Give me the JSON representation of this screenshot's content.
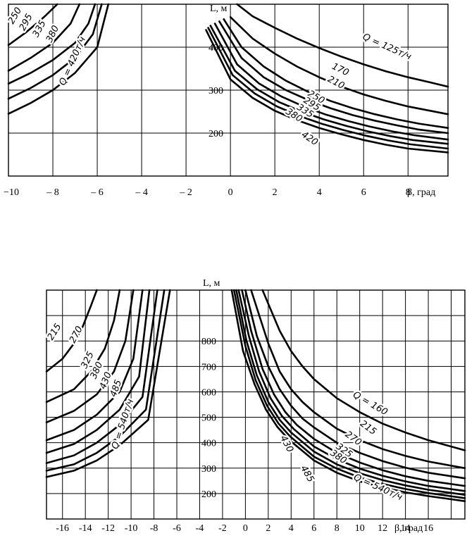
{
  "chart_data": [
    {
      "type": "line",
      "title": "",
      "xlabel": "β, град",
      "ylabel": "L, м",
      "xlim": [
        -10,
        9.8
      ],
      "ylim": [
        100,
        500
      ],
      "grid": true,
      "x_ticks": [
        -10,
        -8,
        -6,
        -4,
        -2,
        0,
        2,
        4,
        6,
        8
      ],
      "x_tick_labels": [
        "−10",
        "– 8",
        "– 6",
        "– 4",
        "– 2",
        "0",
        "2",
        "4",
        "6",
        "8"
      ],
      "y_ticks": [
        200,
        300,
        400
      ],
      "y_tick_labels": [
        "200",
        "300",
        "400"
      ],
      "left_labels": [
        "250",
        "295",
        "335",
        "380",
        "Q = 420т/ч"
      ],
      "right_labels": [
        "Q = 125т/ч",
        "170",
        "210",
        "250",
        "295",
        "335",
        "380",
        "420"
      ],
      "series": [
        {
          "name": "125",
          "x_left": [
            -10,
            -9.2,
            -8.4,
            -7.8
          ],
          "y_left": [
            405,
            435,
            470,
            500
          ],
          "x": [
            0.3,
            1,
            2,
            3,
            4,
            5,
            6,
            7,
            8,
            9,
            9.8
          ],
          "y": [
            500,
            472,
            445,
            420,
            398,
            378,
            360,
            344,
            330,
            318,
            308
          ]
        },
        {
          "name": "170",
          "x_left": [
            -10,
            -9,
            -8,
            -7.2,
            -6.8
          ],
          "y_left": [
            345,
            375,
            410,
            455,
            500
          ],
          "x": [
            0,
            1,
            2,
            3,
            4,
            5,
            6,
            7,
            8,
            9,
            9.8
          ],
          "y": [
            470,
            420,
            385,
            355,
            330,
            308,
            290,
            275,
            262,
            252,
            244
          ]
        },
        {
          "name": "210",
          "x_left": [
            -10,
            -9,
            -8,
            -7,
            -6.4,
            -6.1
          ],
          "y_left": [
            315,
            340,
            370,
            410,
            455,
            500
          ],
          "x": [
            -0.3,
            0.5,
            1.5,
            2.5,
            3.5,
            4.5,
            5.5,
            6.5,
            7.5,
            8.5,
            9.8
          ],
          "y": [
            465,
            400,
            355,
            322,
            296,
            275,
            258,
            244,
            232,
            222,
            212
          ]
        },
        {
          "name": "250",
          "x_left": [
            -10,
            -9,
            -8,
            -7,
            -6.2,
            -5.8
          ],
          "y_left": [
            280,
            305,
            335,
            375,
            430,
            500
          ],
          "x": [
            -0.5,
            0.5,
            1.5,
            2.5,
            3.5,
            4.5,
            5.5,
            6.5,
            7.5,
            8.5,
            9.8
          ],
          "y": [
            460,
            375,
            330,
            300,
            277,
            258,
            242,
            229,
            218,
            208,
            200
          ]
        },
        {
          "name": "295",
          "x_left": [
            -10,
            -9,
            -8,
            -7,
            -6,
            -5.5
          ],
          "y_left": [
            245,
            270,
            300,
            340,
            400,
            500
          ],
          "x": [
            -0.7,
            0.3,
            1.3,
            2.3,
            3.3,
            4.3,
            5.3,
            6.3,
            7.3,
            8.3,
            9.8
          ],
          "y": [
            455,
            360,
            315,
            285,
            262,
            243,
            228,
            215,
            204,
            195,
            185
          ]
        },
        {
          "name": "335",
          "x_left": [],
          "y_left": [],
          "x": [
            -0.9,
            0.2,
            1.2,
            2.2,
            3.2,
            4.2,
            5.2,
            6.2,
            7.2,
            8.2,
            9.8
          ],
          "y": [
            450,
            345,
            302,
            272,
            250,
            232,
            217,
            204,
            193,
            184,
            175
          ]
        },
        {
          "name": "380",
          "x_left": [],
          "y_left": [],
          "x": [
            -1,
            0.1,
            1.1,
            2.1,
            3.1,
            4.1,
            5.1,
            6.1,
            7.1,
            8.1,
            9.8
          ],
          "y": [
            445,
            335,
            292,
            262,
            240,
            222,
            207,
            194,
            183,
            174,
            164
          ]
        },
        {
          "name": "420",
          "x_left": [],
          "y_left": [],
          "x": [
            -1.1,
            0,
            1,
            2,
            3,
            4,
            5,
            6,
            7,
            8,
            9.8
          ],
          "y": [
            440,
            325,
            282,
            252,
            230,
            212,
            197,
            184,
            173,
            164,
            155
          ]
        }
      ]
    },
    {
      "type": "line",
      "title": "",
      "xlabel": "β, град",
      "ylabel": "L, м",
      "xlim": [
        -17.4,
        19.2
      ],
      "ylim": [
        100,
        1000
      ],
      "grid": true,
      "x_ticks": [
        -16,
        -14,
        -12,
        -10,
        -8,
        -6,
        -4,
        -2,
        0,
        2,
        4,
        6,
        8,
        10,
        12,
        14,
        16
      ],
      "x_tick_labels": [
        "-16",
        "-14",
        "-12",
        "-10",
        "-8",
        "-6",
        "-4",
        "-2",
        "0",
        "2",
        "4",
        "6",
        "8",
        "10",
        "12",
        "14",
        "16"
      ],
      "y_ticks": [
        200,
        300,
        400,
        500,
        600,
        700,
        800
      ],
      "y_tick_labels": [
        "200",
        "300",
        "400",
        "500",
        "600",
        "700",
        "800"
      ],
      "left_labels": [
        "215",
        "270",
        "325",
        "380",
        "430",
        "485",
        "Q = 540т/ч"
      ],
      "right_labels": [
        "Q = 160",
        "215",
        "270",
        "325",
        "380",
        "430",
        "485",
        "Q = 540т/ч"
      ],
      "series": [
        {
          "name": "160",
          "x_left": [
            -17.4,
            -16,
            -15,
            -14.2,
            -13.5,
            -13
          ],
          "y_left": [
            680,
            730,
            790,
            860,
            940,
            1000
          ],
          "x": [
            1.5,
            3,
            4,
            5,
            6,
            8,
            10,
            12,
            14,
            16,
            19.2
          ],
          "y": [
            1000,
            840,
            760,
            700,
            650,
            575,
            520,
            475,
            440,
            410,
            370
          ]
        },
        {
          "name": "215",
          "x_left": [
            -17.4,
            -15,
            -13.5,
            -12.3,
            -11.5,
            -11
          ],
          "y_left": [
            560,
            610,
            680,
            770,
            880,
            1000
          ],
          "x": [
            0.5,
            2,
            3,
            4,
            5,
            6,
            8,
            10,
            12,
            14,
            16,
            19.2
          ],
          "y": [
            1000,
            790,
            680,
            610,
            560,
            520,
            455,
            410,
            375,
            348,
            326,
            300
          ]
        },
        {
          "name": "270",
          "x_left": [
            -17.4,
            -15,
            -13,
            -11.5,
            -10.5,
            -9.8
          ],
          "y_left": [
            480,
            525,
            590,
            680,
            800,
            1000
          ],
          "x": [
            0,
            1,
            2,
            3,
            4,
            5,
            6,
            8,
            10,
            12,
            14,
            16,
            19.2
          ],
          "y": [
            1000,
            820,
            700,
            610,
            545,
            495,
            460,
            400,
            360,
            328,
            302,
            282,
            260
          ]
        },
        {
          "name": "325",
          "x_left": [
            -17.4,
            -15,
            -13,
            -11,
            -9.8,
            -9
          ],
          "y_left": [
            410,
            450,
            510,
            600,
            730,
            1000
          ],
          "x": [
            -0.3,
            0.5,
            1.5,
            2.5,
            3.5,
            4.5,
            6,
            8,
            10,
            12,
            14,
            16,
            19.2
          ],
          "y": [
            1000,
            840,
            690,
            590,
            520,
            470,
            415,
            360,
            322,
            292,
            268,
            250,
            230
          ]
        },
        {
          "name": "380",
          "x_left": [
            -17.4,
            -15,
            -13,
            -11,
            -9.3,
            -8.4
          ],
          "y_left": [
            360,
            395,
            450,
            530,
            660,
            1000
          ],
          "x": [
            -0.6,
            0.3,
            1.2,
            2.2,
            3.2,
            4.2,
            6,
            8,
            10,
            12,
            14,
            16,
            19.2
          ],
          "y": [
            1000,
            820,
            680,
            575,
            505,
            455,
            385,
            335,
            298,
            270,
            248,
            230,
            210
          ]
        },
        {
          "name": "430",
          "x_left": [
            -17.4,
            -15,
            -13,
            -11,
            -9,
            -7.7
          ],
          "y_left": [
            320,
            350,
            400,
            470,
            580,
            1000
          ],
          "x": [
            -0.8,
            0.1,
            1,
            2,
            3,
            4,
            6,
            8,
            10,
            12,
            14,
            16,
            19.2
          ],
          "y": [
            1000,
            800,
            665,
            560,
            490,
            440,
            365,
            315,
            280,
            253,
            232,
            215,
            195
          ]
        },
        {
          "name": "485",
          "x_left": [
            -17.4,
            -15,
            -13,
            -11,
            -8.7,
            -7.1
          ],
          "y_left": [
            290,
            315,
            360,
            425,
            530,
            1000
          ],
          "x": [
            -1,
            0,
            0.9,
            1.9,
            2.9,
            3.9,
            6,
            8,
            10,
            12,
            14,
            16,
            19.2
          ],
          "y": [
            1000,
            780,
            645,
            545,
            475,
            425,
            345,
            298,
            263,
            238,
            218,
            202,
            182
          ]
        },
        {
          "name": "540",
          "x_left": [
            -17.4,
            -15,
            -13,
            -11,
            -8.5,
            -6.6
          ],
          "y_left": [
            265,
            290,
            330,
            390,
            490,
            1000
          ],
          "x": [
            -1.2,
            -0.2,
            0.8,
            1.8,
            2.8,
            3.8,
            6,
            8,
            10,
            12,
            14,
            16,
            19.2
          ],
          "y": [
            1000,
            760,
            630,
            530,
            462,
            412,
            330,
            282,
            248,
            224,
            205,
            190,
            170
          ]
        }
      ]
    }
  ]
}
